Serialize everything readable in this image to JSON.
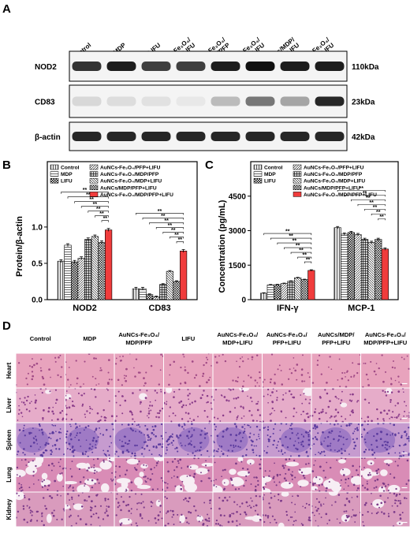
{
  "panel_labels": [
    "A",
    "B",
    "C",
    "D"
  ],
  "blot": {
    "lanes": [
      [
        "Control"
      ],
      [
        "MDP"
      ],
      [
        "LIFU"
      ],
      [
        "AuNCs-Fe₃O₄/",
        "PFP+LIFU"
      ],
      [
        "AuNCs-Fe₃O₄/",
        "MDP/PFP"
      ],
      [
        "AuNCs-Fe₃O₄/",
        "MDP+LIFU"
      ],
      [
        "AuNCs/MDP/",
        "PFP+LIFU"
      ],
      [
        "AuNCs-Fe₃O₄/",
        "MDP/PFP+LIFU"
      ]
    ],
    "rows": [
      {
        "label": "NOD2",
        "size": "110kDa"
      },
      {
        "label": "CD83",
        "size": "23kDa"
      },
      {
        "label": "β-actin",
        "size": "42kDa"
      }
    ]
  },
  "chart_data": [
    {
      "type": "bar",
      "y_label": "Protein/β-actin",
      "categories": [
        "NOD2",
        "CD83"
      ],
      "ylim": [
        0,
        1.9
      ],
      "yticks": [
        {
          "value": 0,
          "label": "0.0"
        },
        {
          "value": 0.5,
          "label": "0.5"
        },
        {
          "value": 1,
          "label": "1.0"
        }
      ],
      "legend": "top-left",
      "significance_label": "**",
      "series": [
        {
          "name": "Control",
          "color": "#e6e6e6",
          "pattern": "vertical",
          "values": [
            0.53,
            0.15
          ],
          "errors": [
            0.02,
            0.02
          ]
        },
        {
          "name": "MDP",
          "color": "#ffffff",
          "pattern": "horizontal",
          "values": [
            0.75,
            0.15
          ],
          "errors": [
            0.02,
            0.02
          ]
        },
        {
          "name": "LIFU",
          "color": "#ffffff",
          "pattern": "checker",
          "values": [
            0.52,
            0.07
          ],
          "errors": [
            0.02,
            0.01
          ]
        },
        {
          "name": "AuNCs-Fe₃O₄/PFP+LIFU",
          "color": "#ffffff",
          "pattern": "diagonal",
          "values": [
            0.57,
            0.04
          ],
          "errors": [
            0.02,
            0.01
          ]
        },
        {
          "name": "AuNCs-Fe₃O₄/MDP/PFP",
          "color": "#d0d0d0",
          "pattern": "grid",
          "values": [
            0.83,
            0.21
          ],
          "errors": [
            0.02,
            0.01
          ]
        },
        {
          "name": "AuNCs-Fe₃O₄/MDP+LIFU",
          "color": "#ffffff",
          "pattern": "backdiagonal",
          "values": [
            0.87,
            0.39
          ],
          "errors": [
            0.02,
            0.01
          ]
        },
        {
          "name": "AuNCs/MDP/PFP+LIFU",
          "color": "#ffffff",
          "pattern": "dense",
          "values": [
            0.79,
            0.25
          ],
          "errors": [
            0.02,
            0.01
          ]
        },
        {
          "name": "AuNCs-Fe₃O₄/MDP/PFP+LIFU",
          "color": "#f03c3c",
          "pattern": "solid",
          "values": [
            0.96,
            0.67
          ],
          "errors": [
            0.02,
            0.02
          ]
        }
      ]
    },
    {
      "type": "bar",
      "y_label": "Concentration (pg/mL)",
      "categories": [
        "IFN-γ",
        "MCP-1"
      ],
      "ylim": [
        0,
        6000
      ],
      "yticks": [
        0,
        1500,
        3000,
        4500
      ],
      "legend": "top-left",
      "significance_label": "**",
      "series": [
        {
          "name": "Control",
          "color": "#e6e6e6",
          "pattern": "vertical",
          "values": [
            280,
            3130
          ],
          "errors": [
            20,
            50
          ]
        },
        {
          "name": "MDP",
          "color": "#ffffff",
          "pattern": "horizontal",
          "values": [
            640,
            2850
          ],
          "errors": [
            20,
            50
          ]
        },
        {
          "name": "LIFU",
          "color": "#ffffff",
          "pattern": "checker",
          "values": [
            650,
            2920
          ],
          "errors": [
            20,
            50
          ]
        },
        {
          "name": "AuNCs-Fe₃O₄/PFP+LIFU",
          "color": "#ffffff",
          "pattern": "diagonal",
          "values": [
            700,
            2830
          ],
          "errors": [
            20,
            50
          ]
        },
        {
          "name": "AuNCs-Fe₃O₄/MDP/PFP",
          "color": "#d0d0d0",
          "pattern": "grid",
          "values": [
            800,
            2620
          ],
          "errors": [
            20,
            50
          ]
        },
        {
          "name": "AuNCs-Fe₃O₄/MDP+LIFU",
          "color": "#ffffff",
          "pattern": "backdiagonal",
          "values": [
            950,
            2490
          ],
          "errors": [
            20,
            50
          ]
        },
        {
          "name": "AuNCs/MDP/PFP+LIFU",
          "color": "#ffffff",
          "pattern": "dense",
          "values": [
            870,
            2620
          ],
          "errors": [
            20,
            50
          ]
        },
        {
          "name": "AuNCs-Fe₃O₄/MDP/PFP+LIFU",
          "color": "#f03c3c",
          "pattern": "solid",
          "values": [
            1270,
            2200
          ],
          "errors": [
            30,
            50
          ]
        }
      ]
    }
  ],
  "histology": {
    "columns": [
      [
        "Control"
      ],
      [
        "MDP"
      ],
      [
        "AuNCs-Fe₃O₄/",
        "MDP/PFP"
      ],
      [
        "LIFU"
      ],
      [
        "AuNCs-Fe₃O₄/",
        "MDP+LIFU"
      ],
      [
        "AuNCs-Fe₃O₄/",
        "PFP+LIFU"
      ],
      [
        "AuNCs/MDP/",
        "PFP+LIFU"
      ],
      [
        "AuNCs-Fe₃O₄/",
        "MDP/PFP+LIFU"
      ]
    ],
    "rows": [
      "Heart",
      "Liver",
      "Spleen",
      "Lung",
      "Kidney"
    ]
  }
}
